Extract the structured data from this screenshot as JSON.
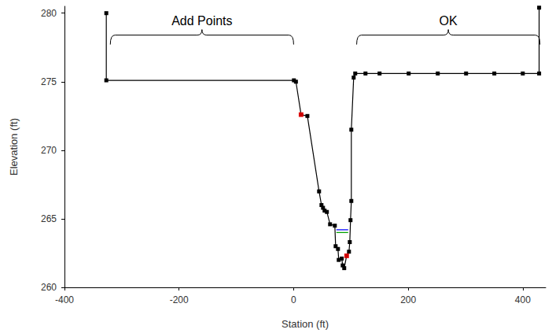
{
  "chart_data": {
    "type": "line",
    "x_label": "Station (ft)",
    "y_label": "Elevation (ft)",
    "xlim": [
      -400,
      440
    ],
    "xticks": [
      -400,
      -200,
      0,
      200,
      400
    ],
    "ylim": [
      260,
      280.5
    ],
    "yticks": [
      260,
      265,
      270,
      275,
      280
    ],
    "grid": false,
    "series": [
      {
        "type": "line",
        "color": "#000000",
        "marker": "square",
        "line_style": "solid",
        "x": [
          -327,
          -327,
          0.5,
          4,
          13,
          24,
          44.4,
          48.6,
          51.3,
          54,
          58,
          63.6,
          71.9,
          73.3,
          77.4,
          78.7,
          84,
          85.6,
          88.3,
          92.5,
          96.6,
          98,
          99.3,
          100.7,
          100.7,
          104.8,
          107.5,
          125.4,
          150,
          200.8,
          251.6,
          301,
          350.3,
          400,
          428.5,
          428.5
        ],
        "values": [
          280,
          275.1,
          275.1,
          275.0,
          272.6,
          272.5,
          267.0,
          266.0,
          265.8,
          265.6,
          265.5,
          264.6,
          264.5,
          263.0,
          262.8,
          262.0,
          262.1,
          261.6,
          261.4,
          262.3,
          262.6,
          263.3,
          264.9,
          266.3,
          271.5,
          275.3,
          275.6,
          275.6,
          275.6,
          275.6,
          275.6,
          275.6,
          275.6,
          275.6,
          275.6,
          280.4
        ]
      },
      {
        "type": "scatter",
        "color": "#ff0000",
        "marker": "square",
        "x": [
          13,
          92.5
        ],
        "values": [
          272.6,
          262.3
        ]
      },
      {
        "type": "line",
        "color": "#0000ff",
        "marker": "none",
        "line_style": "solid",
        "x": [
          74.6,
          95.2
        ],
        "values": [
          264.2,
          264.2
        ]
      },
      {
        "type": "line",
        "color": "#00a000",
        "marker": "none",
        "line_style": "solid",
        "x": [
          74.6,
          95.2
        ],
        "values": [
          264.0,
          264.0
        ]
      }
    ],
    "annotations": [
      {
        "text": "Add Points",
        "from": -320,
        "to": 0,
        "y": 278.4
      },
      {
        "text": "OK",
        "from": 110,
        "to": 430,
        "y": 278.4
      }
    ]
  }
}
